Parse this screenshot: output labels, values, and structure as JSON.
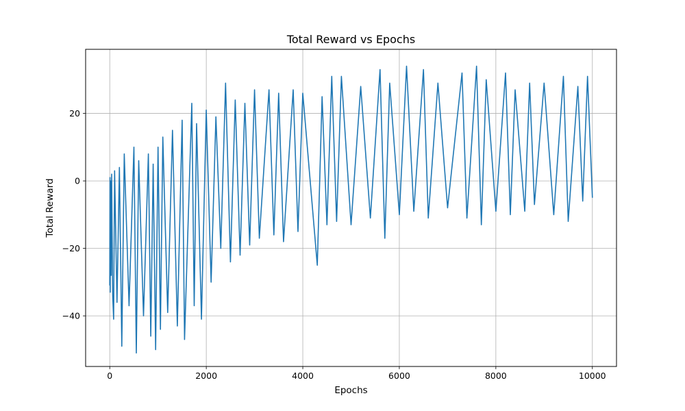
{
  "chart_data": {
    "type": "line",
    "title": "Total Reward vs Epochs",
    "xlabel": "Epochs",
    "ylabel": "Total Reward",
    "xlim": [
      -500,
      10500
    ],
    "ylim": [
      -55,
      39
    ],
    "xticks": [
      0,
      2000,
      4000,
      6000,
      8000,
      10000
    ],
    "yticks": [
      -40,
      -20,
      0,
      20
    ],
    "xtick_labels": [
      "0",
      "2000",
      "4000",
      "6000",
      "8000",
      "10000"
    ],
    "ytick_labels": [
      "−40",
      "−20",
      "0",
      "20"
    ],
    "grid": true,
    "line_color": "#1f77b4",
    "series": [
      {
        "points": [
          [
            0,
            -31
          ],
          [
            5,
            1
          ],
          [
            10,
            -33
          ],
          [
            20,
            0
          ],
          [
            30,
            -28
          ],
          [
            40,
            2
          ],
          [
            60,
            -34
          ],
          [
            80,
            -41
          ],
          [
            100,
            3
          ],
          [
            150,
            -36
          ],
          [
            200,
            4
          ],
          [
            250,
            -49
          ],
          [
            300,
            8
          ],
          [
            400,
            -37
          ],
          [
            500,
            10
          ],
          [
            550,
            -51
          ],
          [
            600,
            6
          ],
          [
            700,
            -40
          ],
          [
            800,
            8
          ],
          [
            850,
            -46
          ],
          [
            900,
            5
          ],
          [
            950,
            -50
          ],
          [
            1000,
            10
          ],
          [
            1050,
            -44
          ],
          [
            1100,
            13
          ],
          [
            1200,
            -39
          ],
          [
            1300,
            15
          ],
          [
            1400,
            -43
          ],
          [
            1500,
            18
          ],
          [
            1550,
            -47
          ],
          [
            1700,
            23
          ],
          [
            1750,
            -37
          ],
          [
            1800,
            17
          ],
          [
            1900,
            -41
          ],
          [
            2000,
            21
          ],
          [
            2100,
            -30
          ],
          [
            2200,
            19
          ],
          [
            2300,
            -20
          ],
          [
            2400,
            29
          ],
          [
            2500,
            -24
          ],
          [
            2600,
            24
          ],
          [
            2700,
            -22
          ],
          [
            2800,
            23
          ],
          [
            2900,
            -19
          ],
          [
            3000,
            27
          ],
          [
            3100,
            -17
          ],
          [
            3300,
            27
          ],
          [
            3400,
            -16
          ],
          [
            3500,
            26
          ],
          [
            3600,
            -18
          ],
          [
            3800,
            27
          ],
          [
            3900,
            -15
          ],
          [
            4000,
            26
          ],
          [
            4300,
            -25
          ],
          [
            4400,
            25
          ],
          [
            4500,
            -13
          ],
          [
            4600,
            31
          ],
          [
            4700,
            -12
          ],
          [
            4800,
            31
          ],
          [
            5000,
            -13
          ],
          [
            5200,
            28
          ],
          [
            5400,
            -11
          ],
          [
            5600,
            33
          ],
          [
            5700,
            -17
          ],
          [
            5800,
            29
          ],
          [
            6000,
            -10
          ],
          [
            6150,
            34
          ],
          [
            6300,
            -9
          ],
          [
            6500,
            33
          ],
          [
            6600,
            -11
          ],
          [
            6800,
            29
          ],
          [
            7000,
            -8
          ],
          [
            7300,
            32
          ],
          [
            7400,
            -11
          ],
          [
            7600,
            34
          ],
          [
            7700,
            -13
          ],
          [
            7800,
            30
          ],
          [
            8000,
            -9
          ],
          [
            8200,
            32
          ],
          [
            8300,
            -10
          ],
          [
            8400,
            27
          ],
          [
            8600,
            -9
          ],
          [
            8700,
            29
          ],
          [
            8800,
            -7
          ],
          [
            9000,
            29
          ],
          [
            9200,
            -10
          ],
          [
            9400,
            31
          ],
          [
            9500,
            -12
          ],
          [
            9700,
            28
          ],
          [
            9800,
            -6
          ],
          [
            9900,
            31
          ],
          [
            10000,
            -5
          ]
        ]
      }
    ]
  }
}
